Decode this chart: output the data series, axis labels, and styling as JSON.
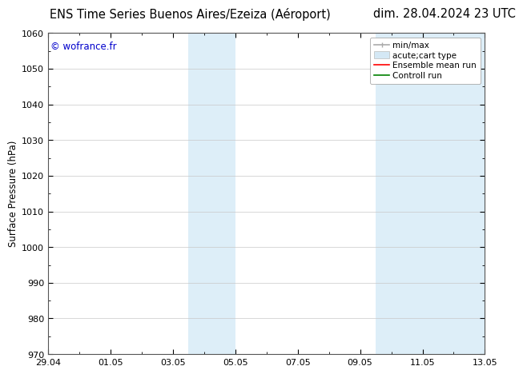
{
  "title": "ENS Time Series Buenos Aires/Ezeiza (Aéroport)",
  "date_label": "dim. 28.04.2024 23 UTC",
  "ylabel": "Surface Pressure (hPa)",
  "ylim": [
    970,
    1060
  ],
  "yticks": [
    970,
    980,
    990,
    1000,
    1010,
    1020,
    1030,
    1040,
    1050,
    1060
  ],
  "xtick_labels": [
    "29.04",
    "01.05",
    "03.05",
    "05.05",
    "07.05",
    "09.05",
    "11.05",
    "13.05"
  ],
  "xtick_positions": [
    0,
    2,
    4,
    6,
    8,
    10,
    12,
    14
  ],
  "xlim": [
    0,
    14
  ],
  "shaded_regions": [
    {
      "x_start": 4.5,
      "x_end": 6.0
    },
    {
      "x_start": 10.5,
      "x_end": 14.0
    }
  ],
  "shaded_color": "#ddeef8",
  "copyright_text": "© wofrance.fr",
  "copyright_color": "#0000cc",
  "background_color": "#ffffff",
  "plot_bg_color": "#ffffff",
  "grid_color": "#c8c8c8",
  "legend_items": [
    {
      "label": "min/max",
      "color": "#aaaaaa",
      "lw": 1.2,
      "style": "line_with_cap"
    },
    {
      "label": "acute;cart type",
      "color": "#d4e8f5",
      "lw": 8,
      "style": "box"
    },
    {
      "label": "Ensemble mean run",
      "color": "#ff0000",
      "lw": 1.2,
      "style": "line"
    },
    {
      "label": "Controll run",
      "color": "#008000",
      "lw": 1.2,
      "style": "line"
    }
  ],
  "title_fontsize": 10.5,
  "date_fontsize": 10.5,
  "ylabel_fontsize": 8.5,
  "tick_fontsize": 8,
  "legend_fontsize": 7.5,
  "copyright_fontsize": 8.5
}
